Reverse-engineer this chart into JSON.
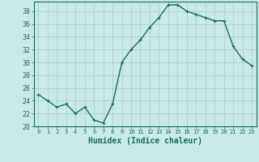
{
  "x": [
    0,
    1,
    2,
    3,
    4,
    5,
    6,
    7,
    8,
    9,
    10,
    11,
    12,
    13,
    14,
    15,
    16,
    17,
    18,
    19,
    20,
    21,
    22,
    23
  ],
  "y": [
    25,
    24,
    23,
    23.5,
    22,
    23,
    21,
    20.5,
    23.5,
    30,
    32,
    33.5,
    35.5,
    37,
    39,
    39,
    38,
    37.5,
    37,
    36.5,
    36.5,
    32.5,
    30.5,
    29.5
  ],
  "line_color": "#1a6b5a",
  "marker": "+",
  "bg_color": "#c8eae8",
  "grid_color": "#a8cece",
  "xlabel": "Humidex (Indice chaleur)",
  "xlim": [
    -0.5,
    23.5
  ],
  "ylim": [
    20,
    39.5
  ],
  "yticks": [
    20,
    22,
    24,
    26,
    28,
    30,
    32,
    34,
    36,
    38
  ],
  "xticks": [
    0,
    1,
    2,
    3,
    4,
    5,
    6,
    7,
    8,
    9,
    10,
    11,
    12,
    13,
    14,
    15,
    16,
    17,
    18,
    19,
    20,
    21,
    22,
    23
  ],
  "tick_color": "#1a6b5a",
  "spine_color": "#1a6b5a",
  "xlabel_fontsize": 7,
  "ytick_fontsize": 6,
  "xtick_fontsize": 5,
  "marker_size": 3,
  "marker_edge_width": 0.8,
  "line_width": 1.0
}
